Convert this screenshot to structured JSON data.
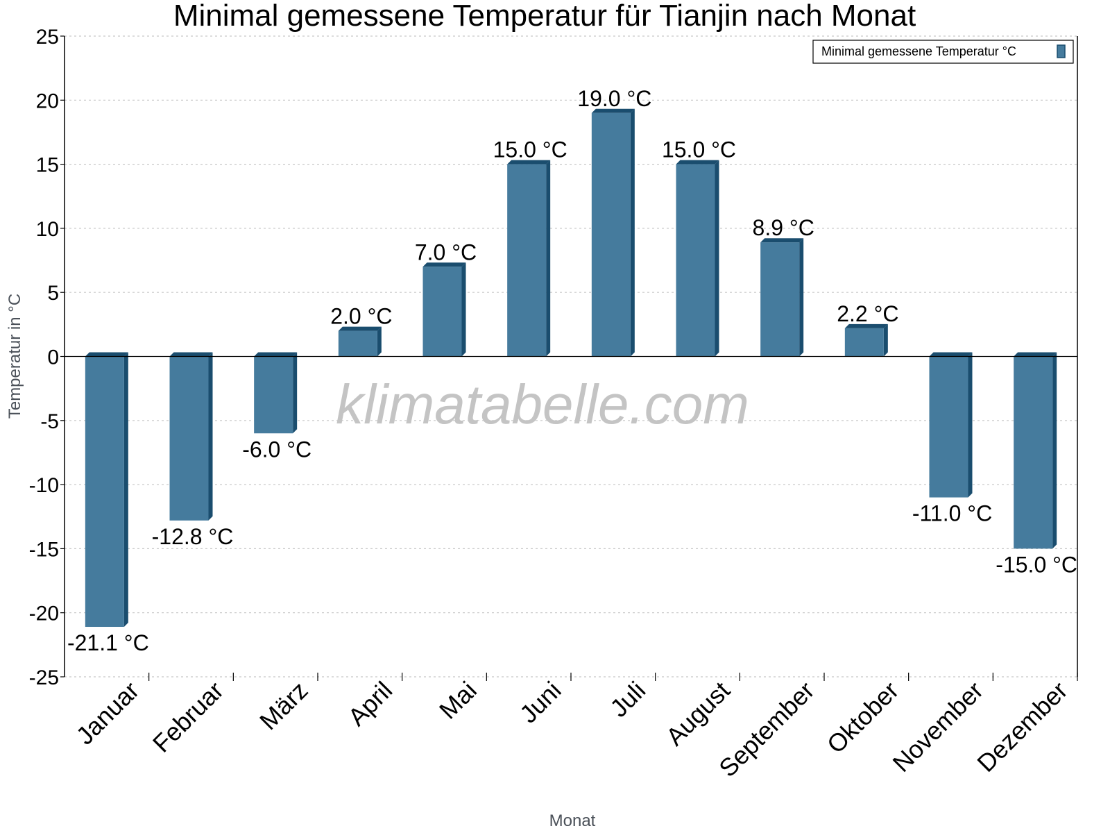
{
  "chart_data": {
    "type": "bar",
    "title": "Minimal gemessene Temperatur für Tianjin nach Monat",
    "xlabel": "Monat",
    "ylabel": "Temperatur in °C",
    "categories": [
      "Januar",
      "Februar",
      "März",
      "April",
      "Mai",
      "Juni",
      "Juli",
      "August",
      "September",
      "Oktober",
      "November",
      "Dezember"
    ],
    "series": [
      {
        "name": "Minimal gemessene Temperatur °C",
        "values": [
          -21.1,
          -12.8,
          -6.0,
          2.0,
          7.0,
          15.0,
          19.0,
          15.0,
          8.9,
          2.2,
          -11.0,
          -15.0
        ],
        "labels": [
          "-21.1 °C",
          "-12.8 °C",
          "-6.0 °C",
          "2.0 °C",
          "7.0 °C",
          "15.0 °C",
          "19.0 °C",
          "15.0 °C",
          "8.9 °C",
          "2.2 °C",
          "-11.0 °C",
          "-15.0 °C"
        ],
        "color": "#457b9d",
        "side_color": "#1a4d6e"
      }
    ],
    "ylim": [
      -25,
      25
    ],
    "yticks": [
      25,
      20,
      15,
      10,
      5,
      0,
      -5,
      -10,
      -15,
      -20,
      -25
    ],
    "ytick_labels": [
      "25",
      "20",
      "15",
      "10",
      "5",
      "0",
      "-5",
      "-10",
      "-15",
      "-20",
      "-25"
    ],
    "grid": true,
    "legend_position": "top-right"
  },
  "legend": {
    "label": "Minimal gemessene Temperatur °C"
  },
  "watermark": "klimatabelle.com"
}
